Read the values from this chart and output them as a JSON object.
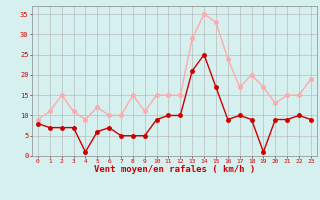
{
  "hours": [
    0,
    1,
    2,
    3,
    4,
    5,
    6,
    7,
    8,
    9,
    10,
    11,
    12,
    13,
    14,
    15,
    16,
    17,
    18,
    19,
    20,
    21,
    22,
    23
  ],
  "wind_avg": [
    8,
    7,
    7,
    7,
    1,
    6,
    7,
    5,
    5,
    5,
    9,
    10,
    10,
    21,
    25,
    17,
    9,
    10,
    9,
    1,
    9,
    9,
    10,
    9
  ],
  "wind_gust": [
    9,
    11,
    15,
    11,
    9,
    12,
    10,
    10,
    15,
    11,
    15,
    15,
    15,
    29,
    35,
    33,
    24,
    17,
    20,
    17,
    13,
    15,
    15,
    19
  ],
  "avg_color": "#cc0000",
  "gust_color": "#ffaaaa",
  "bg_color": "#d6f0f0",
  "grid_color": "#b0b0b0",
  "tick_color": "#cc0000",
  "label_color": "#cc0000",
  "xlabel": "Vent moyen/en rafales ( km/h )",
  "ylim": [
    0,
    37
  ],
  "yticks": [
    0,
    5,
    10,
    15,
    20,
    25,
    30,
    35
  ],
  "marker_size": 2.5,
  "linewidth": 1.0
}
